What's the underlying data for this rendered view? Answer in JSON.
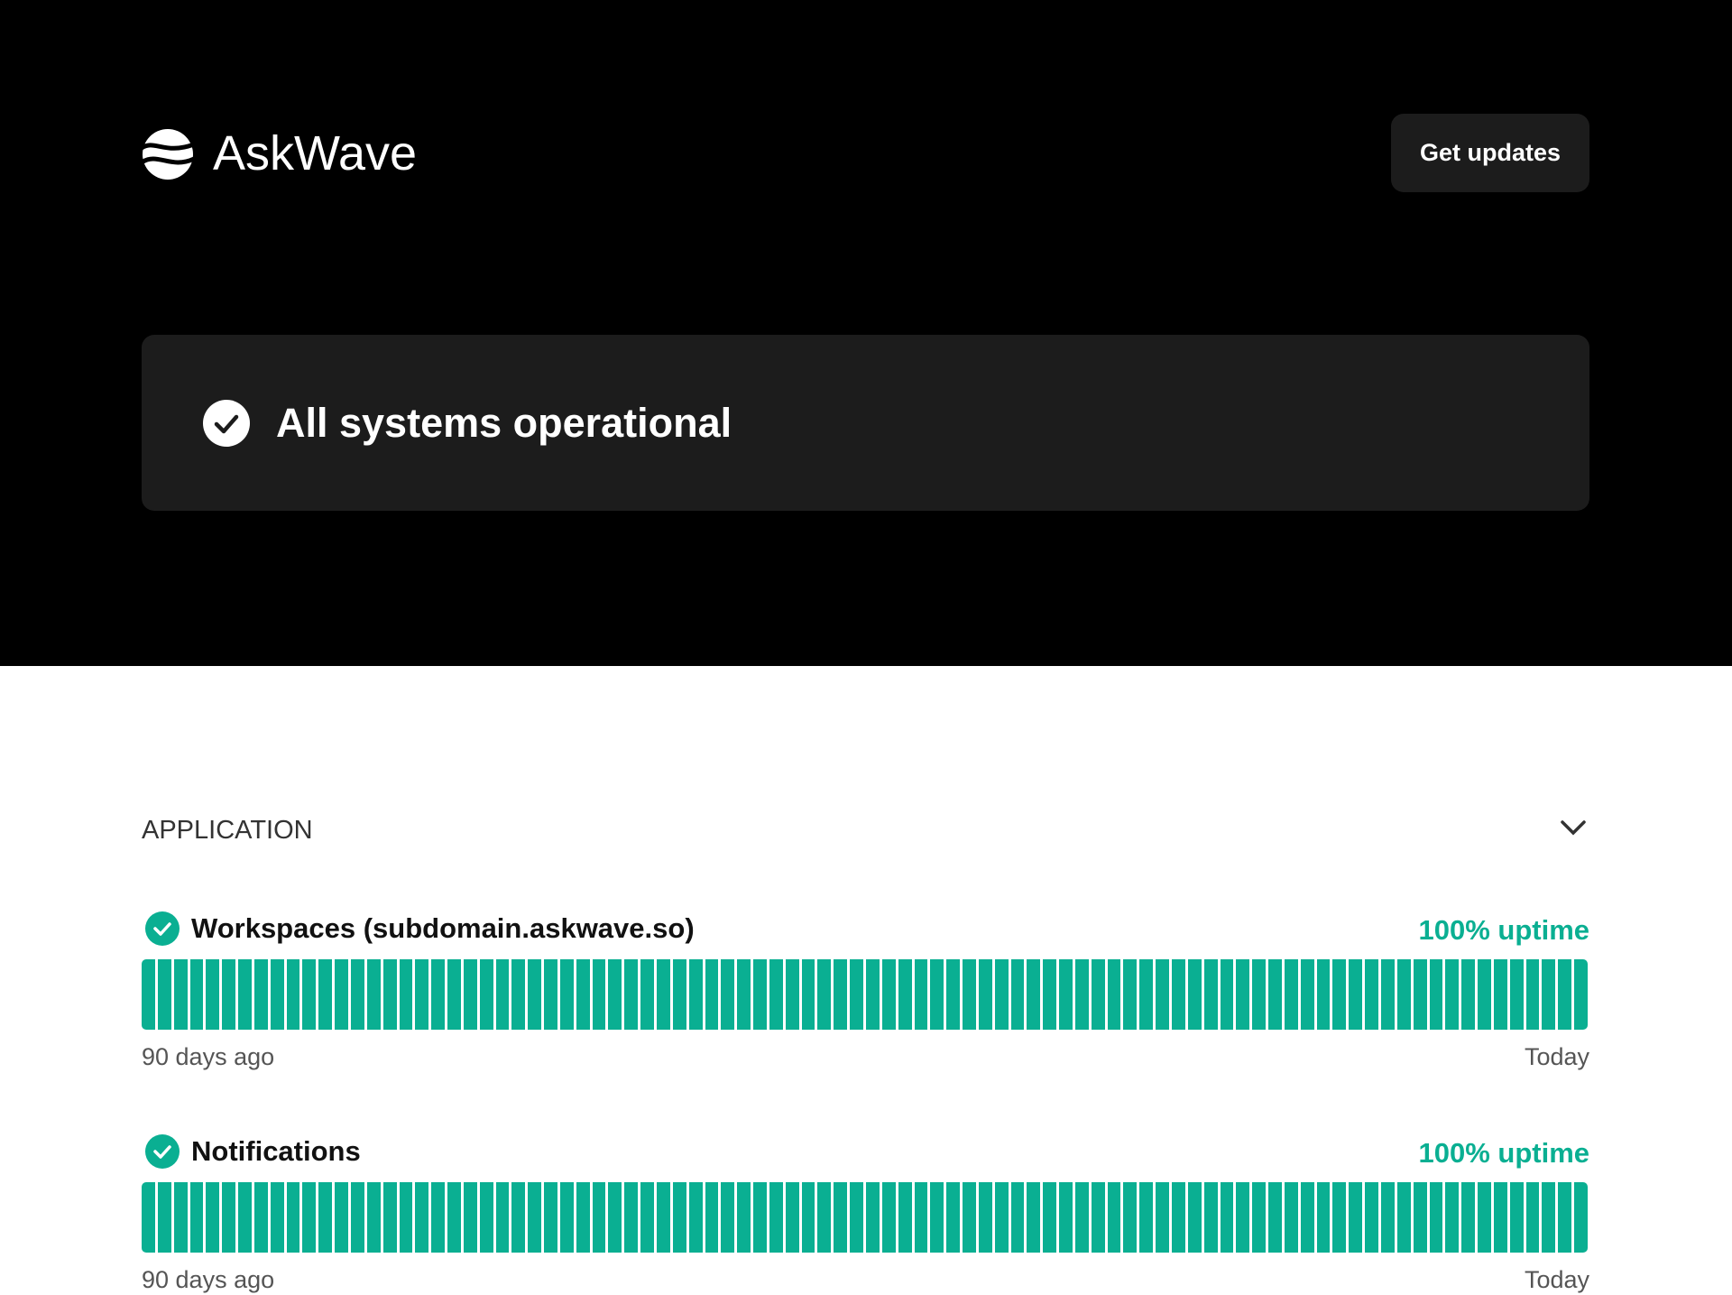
{
  "header": {
    "brand": "AskWave",
    "button": "Get updates"
  },
  "status": {
    "message": "All systems operational"
  },
  "sections": [
    {
      "title": "APPLICATION",
      "components": [
        {
          "name": "Workspaces (subdomain.askwave.so)",
          "uptime": "100% uptime",
          "start_label": "90 days ago",
          "end_label": "Today",
          "daily_uptime": [
            100,
            100,
            100,
            100,
            100,
            100,
            100,
            100,
            100,
            100,
            100,
            100,
            100,
            100,
            100,
            100,
            100,
            100,
            100,
            100,
            100,
            100,
            100,
            100,
            100,
            100,
            100,
            100,
            100,
            100,
            100,
            100,
            100,
            100,
            100,
            100,
            100,
            100,
            100,
            100,
            100,
            100,
            100,
            100,
            100,
            100,
            100,
            100,
            100,
            100,
            100,
            100,
            100,
            100,
            100,
            100,
            100,
            100,
            100,
            100,
            100,
            100,
            100,
            100,
            100,
            100,
            100,
            100,
            100,
            100,
            100,
            100,
            100,
            100,
            100,
            100,
            100,
            100,
            100,
            100,
            100,
            100,
            100,
            100,
            100,
            100,
            100,
            100,
            100,
            100
          ]
        },
        {
          "name": "Notifications",
          "uptime": "100% uptime",
          "start_label": "90 days ago",
          "end_label": "Today",
          "daily_uptime": [
            100,
            100,
            100,
            100,
            100,
            100,
            100,
            100,
            100,
            100,
            100,
            100,
            100,
            100,
            100,
            100,
            100,
            100,
            100,
            100,
            100,
            100,
            100,
            100,
            100,
            100,
            100,
            100,
            100,
            100,
            100,
            100,
            100,
            100,
            100,
            100,
            100,
            100,
            100,
            100,
            100,
            100,
            100,
            100,
            100,
            100,
            100,
            100,
            100,
            100,
            100,
            100,
            100,
            100,
            100,
            100,
            100,
            100,
            100,
            100,
            100,
            100,
            100,
            100,
            100,
            100,
            100,
            100,
            100,
            100,
            100,
            100,
            100,
            100,
            100,
            100,
            100,
            100,
            100,
            100,
            100,
            100,
            100,
            100,
            100,
            100,
            100,
            100,
            100,
            100
          ]
        }
      ]
    }
  ]
}
